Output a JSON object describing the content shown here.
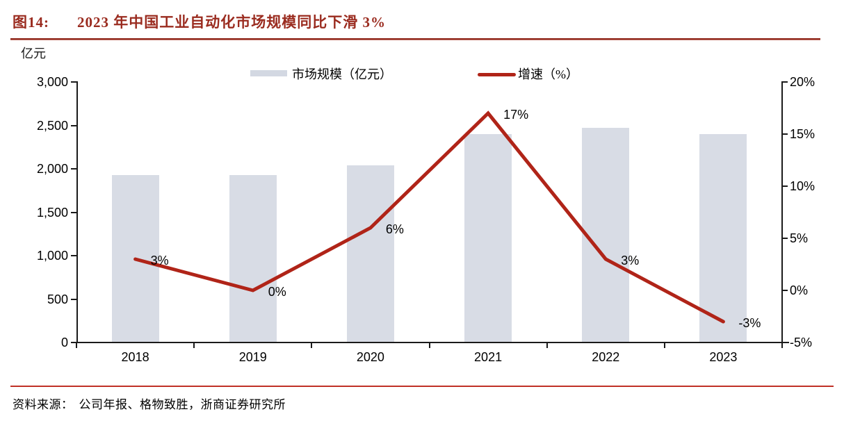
{
  "title": {
    "tag": "图14:",
    "text": "2023 年中国工业自动化市场规模同比下滑 3%"
  },
  "source": {
    "label": "资料来源：",
    "text": "公司年报、格物致胜，浙商证券研究所"
  },
  "colors": {
    "bar": "#D8DCE5",
    "line": "#B02418",
    "title_red": "#9A2B1F",
    "rule_red": "#C03026",
    "axis_black": "#1a1a1a"
  },
  "chart_data": {
    "type": "bar",
    "subtype": "combo-bar-line-dual-axis",
    "categories": [
      "2018",
      "2019",
      "2020",
      "2021",
      "2022",
      "2023"
    ],
    "series": [
      {
        "name": "市场规模（亿元）",
        "type": "bar",
        "axis": "left",
        "values": [
          1930,
          1930,
          2040,
          2400,
          2470,
          2400
        ],
        "color": "#D8DCE5"
      },
      {
        "name": "增速（%）",
        "type": "line",
        "axis": "right",
        "values": [
          3,
          0,
          6,
          17,
          3,
          -3
        ],
        "point_labels": [
          "3%",
          "0%",
          "6%",
          "17%",
          "3%",
          "-3%"
        ],
        "color": "#B02418"
      }
    ],
    "left_axis": {
      "unit": "亿元",
      "min": 0,
      "max": 3000,
      "step": 500,
      "tick_labels": [
        "3,000",
        "2,500",
        "2,000",
        "1,500",
        "1,000",
        "500",
        "0"
      ]
    },
    "right_axis": {
      "min": -5,
      "max": 20,
      "step": 5,
      "tick_labels": [
        "20%",
        "15%",
        "10%",
        "5%",
        "0%",
        "-5%"
      ]
    },
    "legend_position": "top-center",
    "grid": false
  }
}
